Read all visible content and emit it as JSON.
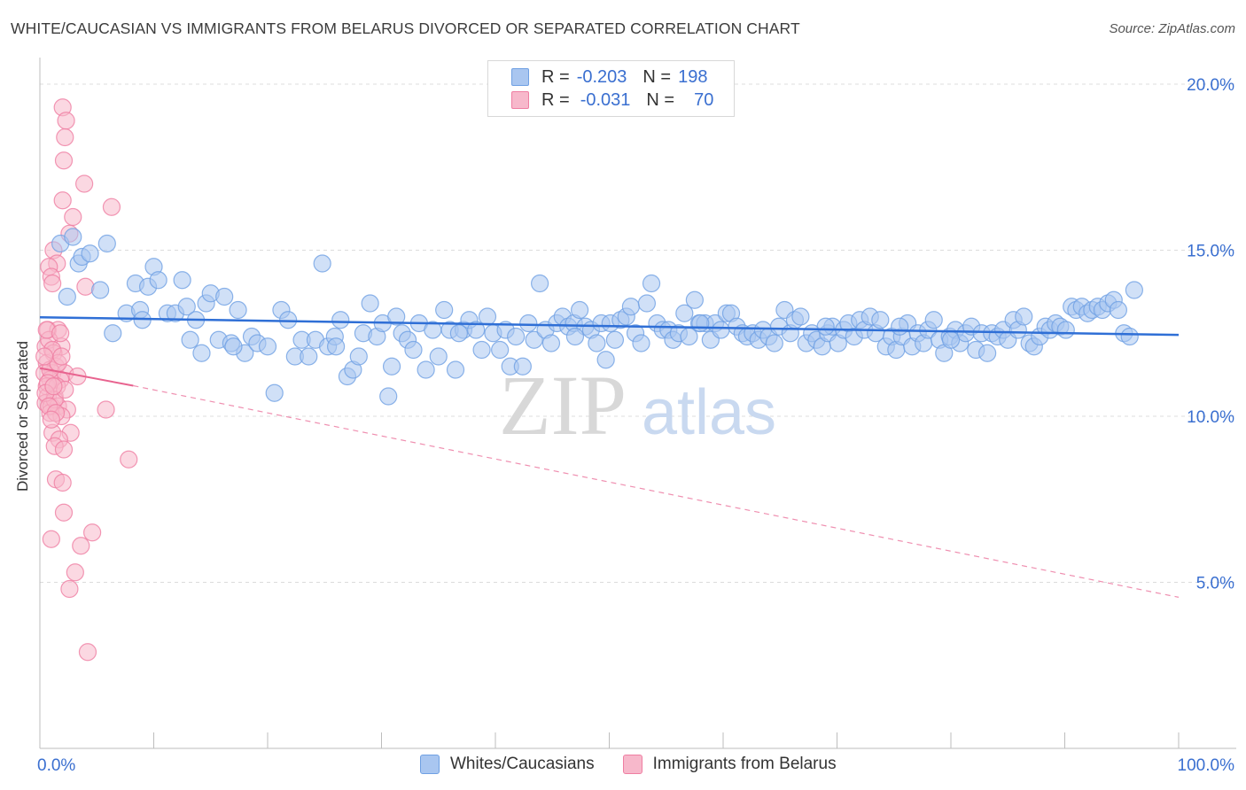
{
  "title": "WHITE/CAUCASIAN VS IMMIGRANTS FROM BELARUS DIVORCED OR SEPARATED CORRELATION CHART",
  "source": "Source: ZipAtlas.com",
  "watermark": {
    "zip": "ZIP",
    "atlas": "atlas"
  },
  "legend": {
    "rows": [
      {
        "r_label": "R =",
        "r_value": "-0.203",
        "n_label": "N =",
        "n_value": "198",
        "color": "#a9c6f0"
      },
      {
        "r_label": "R =",
        "r_value": "-0.031",
        "n_label": "N =",
        "n_value": "70",
        "color": "#f7b8cb"
      }
    ]
  },
  "bottom_legend": {
    "items": [
      {
        "label": "Whites/Caucasians",
        "color": "#a9c6f0"
      },
      {
        "label": "Immigrants from Belarus",
        "color": "#f7b8cb"
      }
    ]
  },
  "chart_data": {
    "type": "scatter",
    "title": "WHITE/CAUCASIAN VS IMMIGRANTS FROM BELARUS DIVORCED OR SEPARATED CORRELATION CHART",
    "xlabel": "",
    "ylabel": "Divorced or Separated",
    "xlim": [
      0,
      100
    ],
    "ylim": [
      0,
      20.8
    ],
    "x_tick_labels": [
      "0.0%",
      "100.0%"
    ],
    "y_ticks": [
      5,
      10,
      15,
      20
    ],
    "y_tick_labels": [
      "5.0%",
      "10.0%",
      "15.0%",
      "20.0%"
    ],
    "grid": true,
    "series": [
      {
        "name": "Whites/Caucasians",
        "color": "#6fa0e3",
        "fill": "#a9c6f0",
        "trend": {
          "x0": 0,
          "y0": 12.98,
          "x1": 100,
          "y1": 12.45
        },
        "points": [
          [
            1.8,
            15.2
          ],
          [
            2.4,
            13.6
          ],
          [
            2.9,
            15.4
          ],
          [
            3.4,
            14.6
          ],
          [
            3.7,
            14.8
          ],
          [
            4.4,
            14.9
          ],
          [
            5.3,
            13.8
          ],
          [
            5.9,
            15.2
          ],
          [
            6.4,
            12.5
          ],
          [
            7.6,
            13.1
          ],
          [
            8.4,
            14.0
          ],
          [
            8.8,
            13.2
          ],
          [
            9.0,
            12.9
          ],
          [
            9.5,
            13.9
          ],
          [
            10.0,
            14.5
          ],
          [
            10.4,
            14.1
          ],
          [
            11.2,
            13.1
          ],
          [
            11.9,
            13.1
          ],
          [
            12.5,
            14.1
          ],
          [
            12.9,
            13.3
          ],
          [
            13.2,
            12.3
          ],
          [
            13.7,
            12.9
          ],
          [
            14.2,
            11.9
          ],
          [
            14.6,
            13.4
          ],
          [
            15.0,
            13.7
          ],
          [
            15.7,
            12.3
          ],
          [
            16.2,
            13.6
          ],
          [
            16.8,
            12.2
          ],
          [
            17.4,
            13.2
          ],
          [
            18.0,
            11.9
          ],
          [
            18.6,
            12.4
          ],
          [
            19.1,
            12.2
          ],
          [
            20.0,
            12.1
          ],
          [
            20.6,
            10.7
          ],
          [
            21.2,
            13.2
          ],
          [
            21.8,
            12.9
          ],
          [
            22.4,
            11.8
          ],
          [
            23.0,
            12.3
          ],
          [
            23.6,
            11.8
          ],
          [
            24.2,
            12.3
          ],
          [
            24.8,
            14.6
          ],
          [
            25.3,
            12.1
          ],
          [
            25.9,
            12.4
          ],
          [
            26.4,
            12.9
          ],
          [
            27.0,
            11.2
          ],
          [
            27.5,
            11.4
          ],
          [
            28.0,
            11.8
          ],
          [
            28.4,
            12.5
          ],
          [
            29.0,
            13.4
          ],
          [
            29.6,
            12.4
          ],
          [
            30.1,
            12.8
          ],
          [
            30.6,
            10.6
          ],
          [
            30.9,
            11.5
          ],
          [
            31.3,
            13.0
          ],
          [
            31.8,
            12.5
          ],
          [
            32.3,
            12.3
          ],
          [
            32.8,
            12.0
          ],
          [
            33.3,
            12.8
          ],
          [
            33.9,
            11.4
          ],
          [
            34.5,
            12.6
          ],
          [
            35.0,
            11.8
          ],
          [
            35.5,
            13.2
          ],
          [
            36.0,
            12.6
          ],
          [
            36.5,
            11.4
          ],
          [
            37.2,
            12.6
          ],
          [
            37.7,
            12.9
          ],
          [
            38.3,
            12.6
          ],
          [
            38.8,
            12.0
          ],
          [
            39.3,
            13.0
          ],
          [
            39.8,
            12.5
          ],
          [
            40.4,
            12.0
          ],
          [
            40.9,
            12.6
          ],
          [
            41.3,
            11.5
          ],
          [
            41.8,
            12.4
          ],
          [
            42.4,
            11.5
          ],
          [
            42.9,
            12.8
          ],
          [
            43.4,
            12.3
          ],
          [
            43.9,
            14.0
          ],
          [
            44.4,
            12.6
          ],
          [
            44.9,
            12.2
          ],
          [
            45.4,
            12.8
          ],
          [
            45.9,
            13.0
          ],
          [
            46.4,
            12.7
          ],
          [
            46.9,
            12.8
          ],
          [
            47.4,
            13.2
          ],
          [
            47.9,
            12.7
          ],
          [
            48.4,
            12.6
          ],
          [
            48.9,
            12.2
          ],
          [
            49.3,
            12.8
          ],
          [
            49.7,
            11.7
          ],
          [
            50.1,
            12.8
          ],
          [
            50.5,
            12.3
          ],
          [
            51.0,
            12.9
          ],
          [
            51.5,
            13.0
          ],
          [
            51.9,
            13.3
          ],
          [
            52.3,
            12.5
          ],
          [
            52.8,
            12.2
          ],
          [
            53.3,
            13.4
          ],
          [
            53.7,
            14.0
          ],
          [
            54.2,
            12.8
          ],
          [
            54.7,
            12.6
          ],
          [
            55.2,
            12.6
          ],
          [
            55.6,
            12.3
          ],
          [
            56.1,
            12.5
          ],
          [
            56.6,
            13.1
          ],
          [
            57.0,
            12.4
          ],
          [
            57.5,
            13.5
          ],
          [
            57.9,
            12.8
          ],
          [
            58.4,
            12.8
          ],
          [
            58.9,
            12.3
          ],
          [
            59.3,
            12.8
          ],
          [
            59.8,
            12.6
          ],
          [
            60.3,
            13.1
          ],
          [
            60.7,
            13.1
          ],
          [
            61.2,
            12.7
          ],
          [
            61.7,
            12.5
          ],
          [
            62.1,
            12.4
          ],
          [
            62.6,
            12.5
          ],
          [
            63.1,
            12.3
          ],
          [
            63.5,
            12.6
          ],
          [
            64.0,
            12.4
          ],
          [
            64.5,
            12.2
          ],
          [
            64.9,
            12.7
          ],
          [
            65.4,
            13.2
          ],
          [
            65.9,
            12.5
          ],
          [
            66.3,
            12.9
          ],
          [
            66.8,
            13.0
          ],
          [
            67.3,
            12.2
          ],
          [
            67.8,
            12.5
          ],
          [
            68.2,
            12.3
          ],
          [
            68.7,
            12.1
          ],
          [
            69.2,
            12.5
          ],
          [
            69.6,
            12.7
          ],
          [
            70.1,
            12.2
          ],
          [
            70.6,
            12.6
          ],
          [
            71.0,
            12.8
          ],
          [
            71.5,
            12.4
          ],
          [
            72.0,
            12.9
          ],
          [
            72.4,
            12.6
          ],
          [
            72.9,
            13.0
          ],
          [
            73.4,
            12.5
          ],
          [
            73.8,
            12.9
          ],
          [
            74.3,
            12.1
          ],
          [
            74.8,
            12.4
          ],
          [
            75.2,
            12.0
          ],
          [
            75.7,
            12.4
          ],
          [
            76.2,
            12.8
          ],
          [
            76.6,
            12.1
          ],
          [
            77.1,
            12.5
          ],
          [
            77.6,
            12.2
          ],
          [
            78.0,
            12.6
          ],
          [
            78.5,
            12.9
          ],
          [
            79.0,
            12.3
          ],
          [
            79.4,
            11.9
          ],
          [
            79.9,
            12.4
          ],
          [
            80.4,
            12.6
          ],
          [
            80.8,
            12.2
          ],
          [
            81.3,
            12.5
          ],
          [
            81.8,
            12.7
          ],
          [
            82.2,
            12.0
          ],
          [
            82.7,
            12.5
          ],
          [
            83.2,
            11.9
          ],
          [
            83.6,
            12.5
          ],
          [
            84.1,
            12.4
          ],
          [
            84.6,
            12.6
          ],
          [
            85.0,
            12.3
          ],
          [
            85.5,
            12.9
          ],
          [
            85.9,
            12.6
          ],
          [
            86.4,
            13.0
          ],
          [
            86.9,
            12.2
          ],
          [
            87.3,
            12.1
          ],
          [
            87.8,
            12.4
          ],
          [
            88.3,
            12.7
          ],
          [
            88.7,
            12.6
          ],
          [
            89.2,
            12.8
          ],
          [
            89.6,
            12.7
          ],
          [
            90.1,
            12.6
          ],
          [
            90.6,
            13.3
          ],
          [
            91.0,
            13.2
          ],
          [
            91.5,
            13.3
          ],
          [
            92.0,
            13.1
          ],
          [
            92.4,
            13.2
          ],
          [
            92.9,
            13.3
          ],
          [
            93.3,
            13.2
          ],
          [
            93.8,
            13.4
          ],
          [
            94.3,
            13.5
          ],
          [
            94.7,
            13.2
          ],
          [
            95.2,
            12.5
          ],
          [
            95.7,
            12.4
          ],
          [
            96.1,
            13.8
          ],
          [
            75.5,
            12.7
          ],
          [
            80.0,
            12.3
          ],
          [
            69.0,
            12.7
          ],
          [
            58.0,
            12.8
          ],
          [
            47.0,
            12.4
          ],
          [
            36.8,
            12.5
          ],
          [
            26.0,
            12.1
          ],
          [
            17.0,
            12.1
          ]
        ]
      },
      {
        "name": "Immigrants from Belarus",
        "color": "#ef7ea2",
        "fill": "#f7b8cb",
        "trend": {
          "x0": 0,
          "y0": 11.45,
          "x1": 8.2,
          "y1": 10.92
        },
        "trend_extension": {
          "x0": 8.2,
          "y0": 10.92,
          "x1": 100,
          "y1": 4.55
        },
        "points": [
          [
            2.0,
            19.3
          ],
          [
            2.3,
            18.9
          ],
          [
            2.2,
            18.4
          ],
          [
            2.1,
            17.7
          ],
          [
            3.9,
            17.0
          ],
          [
            2.0,
            16.5
          ],
          [
            6.3,
            16.3
          ],
          [
            2.9,
            16.0
          ],
          [
            2.6,
            15.5
          ],
          [
            1.2,
            15.0
          ],
          [
            1.5,
            14.6
          ],
          [
            0.8,
            14.5
          ],
          [
            1.0,
            14.2
          ],
          [
            4.0,
            13.9
          ],
          [
            1.1,
            14.0
          ],
          [
            0.7,
            12.6
          ],
          [
            1.6,
            12.6
          ],
          [
            0.5,
            12.1
          ],
          [
            0.8,
            12.3
          ],
          [
            1.9,
            12.1
          ],
          [
            1.2,
            11.9
          ],
          [
            0.6,
            11.6
          ],
          [
            1.4,
            11.5
          ],
          [
            1.1,
            11.3
          ],
          [
            0.4,
            11.3
          ],
          [
            2.2,
            11.3
          ],
          [
            3.3,
            11.2
          ],
          [
            1.8,
            11.1
          ],
          [
            0.9,
            11.1
          ],
          [
            0.6,
            10.9
          ],
          [
            0.7,
            10.6
          ],
          [
            1.3,
            10.6
          ],
          [
            0.5,
            10.4
          ],
          [
            1.0,
            10.3
          ],
          [
            1.6,
            10.3
          ],
          [
            2.4,
            10.2
          ],
          [
            0.9,
            10.1
          ],
          [
            1.9,
            10.0
          ],
          [
            5.8,
            10.2
          ],
          [
            1.1,
            9.5
          ],
          [
            2.7,
            9.5
          ],
          [
            1.7,
            9.3
          ],
          [
            1.3,
            9.1
          ],
          [
            2.1,
            9.0
          ],
          [
            7.8,
            8.7
          ],
          [
            1.4,
            8.1
          ],
          [
            2.0,
            8.0
          ],
          [
            2.1,
            7.1
          ],
          [
            1.0,
            6.3
          ],
          [
            3.6,
            6.1
          ],
          [
            4.6,
            6.5
          ],
          [
            3.1,
            5.3
          ],
          [
            2.6,
            4.8
          ],
          [
            4.2,
            2.9
          ],
          [
            0.6,
            12.6
          ],
          [
            1.5,
            10.9
          ],
          [
            0.9,
            11.4
          ],
          [
            1.3,
            10.5
          ],
          [
            0.7,
            11.0
          ],
          [
            1.8,
            12.5
          ],
          [
            2.2,
            10.8
          ],
          [
            0.5,
            10.7
          ],
          [
            1.1,
            12.0
          ],
          [
            1.6,
            11.6
          ],
          [
            0.8,
            10.3
          ],
          [
            1.2,
            10.9
          ],
          [
            1.9,
            11.8
          ],
          [
            0.4,
            11.8
          ],
          [
            1.4,
            10.1
          ],
          [
            1.0,
            9.9
          ]
        ]
      }
    ]
  }
}
